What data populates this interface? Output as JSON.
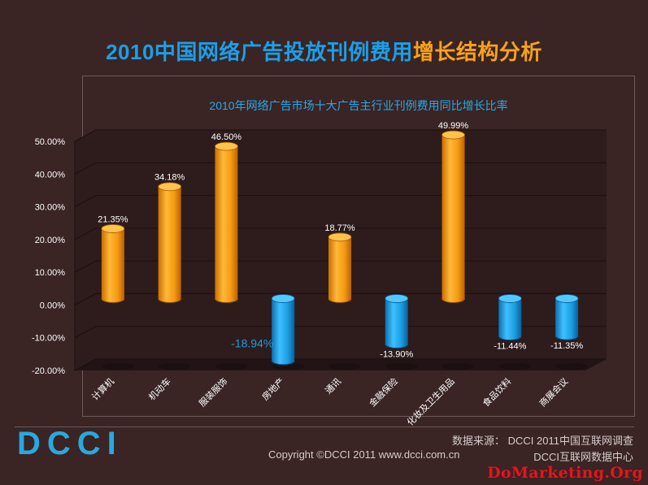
{
  "header": {
    "title_a": "2010中国网络广告投放刊例费用",
    "title_b": "增长结构分析"
  },
  "chart_data": {
    "type": "bar",
    "title": "2010年网络广告市场十大广告主行业刊例费用同比增长比率",
    "categories": [
      "计算机",
      "机动车",
      "服装服饰",
      "房地产",
      "通讯",
      "金融保险",
      "化妆及卫生用品",
      "食品饮料",
      "商展会议"
    ],
    "values": [
      21.35,
      34.18,
      46.5,
      -18.94,
      18.77,
      -13.9,
      49.99,
      -11.44,
      -11.35
    ],
    "value_labels": [
      "21.35%",
      "34.18%",
      "46.50%",
      "-18.94%",
      "18.77%",
      "-13.90%",
      "49.99%",
      "-11.44%",
      "-11.35%"
    ],
    "ylim": [
      -20,
      50
    ],
    "yticks": [
      -20,
      -10,
      0,
      10,
      20,
      30,
      40,
      50
    ],
    "ytick_labels": [
      "-20.00%",
      "-10.00%",
      "0.00%",
      "10.00%",
      "20.00%",
      "30.00%",
      "40.00%",
      "50.00%"
    ],
    "grid": true,
    "colors": {
      "positive": "#f7a21b",
      "negative": "#1b9fe3",
      "highlight_label": "#1b9fe3"
    }
  },
  "footer": {
    "logo_text": "DCCI",
    "source": "数据来源： DCCI 2011中国互联网调查",
    "copyright": "Copyright ©DCCI 2011 www.dcci.com.cn",
    "center": "DCCI互联网数据中心",
    "watermark": "DoMarketing.Org"
  }
}
